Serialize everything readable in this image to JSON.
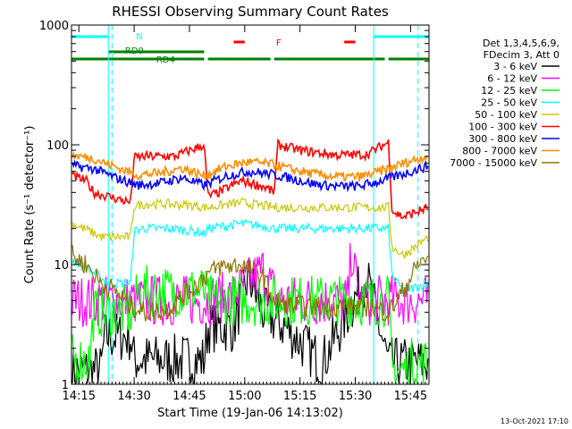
{
  "chart_data": {
    "type": "line",
    "title": "RHESSI Observing Summary Count Rates",
    "xlabel": "Start Time (19-Jan-06 14:13:02)",
    "ylabel": "Count Rate (s⁻¹ detector⁻¹)",
    "y_scale": "log",
    "ylim": [
      1,
      1000
    ],
    "xlim_minutes": [
      0,
      97
    ],
    "x_ticks": [
      {
        "label": "14:15",
        "minute": 2
      },
      {
        "label": "14:30",
        "minute": 17
      },
      {
        "label": "14:45",
        "minute": 32
      },
      {
        "label": "15:00",
        "minute": 47
      },
      {
        "label": "15:15",
        "minute": 62
      },
      {
        "label": "15:30",
        "minute": 77
      },
      {
        "label": "15:45",
        "minute": 92
      }
    ],
    "y_ticks": [
      {
        "label": "1",
        "value": 1
      },
      {
        "label": "10",
        "value": 10
      },
      {
        "label": "100",
        "value": 100
      },
      {
        "label": "1000",
        "value": 1000
      }
    ],
    "legend_header": [
      "Det 1,3,4,5,6,9,",
      "FDecim 3, Att 0"
    ],
    "series": [
      {
        "name": "3 - 6 keV",
        "color": "#000000",
        "x": [
          0,
          8,
          9,
          16,
          17,
          36,
          37,
          44,
          48,
          52,
          58,
          68,
          80,
          86,
          87,
          97
        ],
        "values": [
          1.3,
          1.3,
          2.5,
          2.5,
          1.6,
          1.6,
          3,
          3,
          8,
          4,
          3,
          1.5,
          8,
          1.5,
          1.5,
          1.5
        ]
      },
      {
        "name": "6 - 12 keV",
        "color": "#ff00ff",
        "x": [
          8,
          20,
          36,
          44,
          52,
          56,
          66,
          75,
          76,
          77,
          78,
          86
        ],
        "values": [
          5,
          5,
          5,
          5.5,
          9,
          5,
          5,
          5,
          14,
          8,
          5,
          5
        ]
      },
      {
        "name": "12 - 25 keV",
        "color": "#00ff00",
        "x": [
          0,
          5,
          6,
          17,
          18,
          36,
          37,
          86,
          87,
          91,
          92,
          97
        ],
        "values": [
          1.6,
          1.6,
          4,
          4,
          6,
          6,
          5,
          5,
          1.3,
          1.3,
          1.5,
          1.5
        ]
      },
      {
        "name": "25 - 50 keV",
        "color": "#00ffff",
        "x": [
          0,
          5,
          10,
          16,
          17,
          19,
          26,
          34,
          36,
          37,
          46,
          52,
          55,
          56,
          66,
          78,
          86,
          87,
          90,
          97
        ],
        "values": [
          11,
          9,
          7,
          7,
          19,
          20,
          20,
          19,
          18,
          20,
          22,
          21,
          20,
          20,
          20,
          20,
          20,
          8,
          6,
          7
        ]
      },
      {
        "name": "50 - 100 keV",
        "color": "#c8c800",
        "x": [
          0,
          5,
          8,
          16,
          17,
          20,
          26,
          34,
          36,
          37,
          46,
          52,
          55,
          56,
          66,
          78,
          86,
          87,
          90,
          97
        ],
        "values": [
          22,
          19,
          17,
          17,
          31,
          32,
          32,
          31,
          30,
          30,
          33,
          31,
          30,
          30,
          30,
          30,
          30,
          14,
          12,
          17
        ]
      },
      {
        "name": "100 - 300 keV",
        "color": "#ff0000",
        "x": [
          0,
          4,
          6,
          16,
          17,
          20,
          28,
          36,
          37,
          40,
          46,
          52,
          55,
          56,
          62,
          72,
          80,
          86,
          87,
          90,
          97
        ],
        "values": [
          55,
          50,
          40,
          33,
          78,
          80,
          80,
          100,
          37,
          40,
          50,
          45,
          40,
          100,
          90,
          82,
          83,
          105,
          28,
          25,
          30
        ]
      },
      {
        "name": "300 - 800 keV",
        "color": "#0000ff",
        "x": [
          0,
          6,
          12,
          18,
          24,
          30,
          36,
          42,
          48,
          54,
          60,
          66,
          72,
          78,
          84,
          90,
          97
        ],
        "values": [
          67,
          63,
          53,
          46,
          48,
          53,
          46,
          55,
          60,
          57,
          52,
          47,
          45,
          45,
          50,
          57,
          67
        ]
      },
      {
        "name": "800 - 7000 keV",
        "color": "#ff8c00",
        "x": [
          0,
          6,
          12,
          18,
          24,
          30,
          36,
          42,
          48,
          54,
          60,
          66,
          72,
          78,
          84,
          90,
          97
        ],
        "values": [
          82,
          77,
          65,
          56,
          58,
          64,
          55,
          66,
          72,
          69,
          62,
          57,
          54,
          54,
          60,
          70,
          82
        ]
      },
      {
        "name": "7000 - 15000 keV",
        "color": "#8b7500",
        "x": [
          0,
          4,
          8,
          12,
          16,
          20,
          26,
          32,
          36,
          40,
          46,
          52,
          55,
          60,
          70,
          80,
          86,
          90,
          94,
          97
        ],
        "values": [
          12,
          10,
          7,
          6,
          4.5,
          4,
          4.2,
          6,
          8,
          9.5,
          10,
          8,
          5,
          4.5,
          4.5,
          4.5,
          4,
          6,
          10,
          12
        ]
      }
    ],
    "annotations": [
      {
        "text": "N",
        "color": "#00ffff"
      },
      {
        "text": "RD0",
        "color": "#008000"
      },
      {
        "text": "RD4",
        "color": "#008000"
      },
      {
        "text": "F",
        "color": "#ff0000"
      }
    ],
    "status_bars": {
      "night": {
        "color": "#00ffff",
        "segments": [
          [
            0,
            10
          ],
          [
            82,
            97
          ]
        ]
      },
      "saa": {
        "color": "#008000",
        "segments": [
          [
            10,
            36
          ]
        ]
      },
      "attenuator": {
        "color": "#008000",
        "segments": [
          [
            0,
            36
          ],
          [
            37,
            54
          ],
          [
            55,
            85
          ],
          [
            86,
            97
          ]
        ]
      },
      "flare": {
        "color": "#ff0000",
        "segments": [
          [
            44,
            47
          ],
          [
            74,
            77
          ]
        ]
      },
      "night_boundaries": [
        10,
        82
      ],
      "night_dashed": [
        11,
        94
      ]
    },
    "timestamp": "13-Oct-2021 17:10"
  }
}
